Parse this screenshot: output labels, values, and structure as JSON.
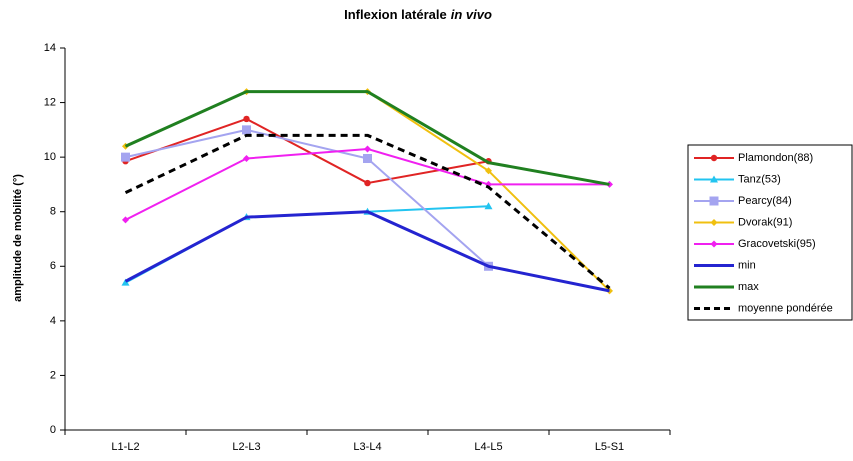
{
  "chart_data": {
    "type": "line",
    "title": [
      "Inflexion latérale",
      "in vivo"
    ],
    "y_label": "amplitude de mobilité (°)",
    "categories": [
      "L1-L2",
      "L2-L3",
      "L3-L4",
      "L4-L5",
      "L5-S1"
    ],
    "ylim": [
      0,
      14
    ],
    "yticks": [
      0,
      2,
      4,
      6,
      8,
      10,
      12,
      14
    ],
    "legend": "right",
    "series": [
      {
        "name": "Plamondon(88)",
        "color": "#e02424",
        "marker": "circle",
        "values": [
          9.85,
          11.4,
          9.05,
          9.85,
          null
        ]
      },
      {
        "name": "Tanz(53)",
        "color": "#22c4f0",
        "marker": "triangle",
        "values": [
          5.4,
          7.8,
          8.0,
          8.2,
          null
        ]
      },
      {
        "name": "Pearcy(84)",
        "color": "#a4a4f0",
        "marker": "square",
        "values": [
          10.0,
          11.0,
          9.95,
          6.0,
          null
        ]
      },
      {
        "name": "Dvorak(91)",
        "color": "#f0c010",
        "marker": "diamond",
        "values": [
          10.4,
          12.4,
          12.4,
          9.5,
          5.1
        ]
      },
      {
        "name": "Gracovetski(95)",
        "color": "#f020f0",
        "marker": "diamond",
        "values": [
          7.7,
          9.95,
          10.3,
          9.0,
          9.0
        ]
      },
      {
        "name": "min",
        "color": "#2424d0",
        "marker": "none",
        "width": 3,
        "values": [
          5.45,
          7.8,
          8.0,
          6.0,
          5.1
        ]
      },
      {
        "name": "max",
        "color": "#208020",
        "marker": "none",
        "width": 3,
        "values": [
          10.4,
          12.4,
          12.4,
          9.8,
          9.0
        ]
      },
      {
        "name": "moyenne pondérée",
        "color": "#000000",
        "marker": "none",
        "width": 3,
        "dash": true,
        "values": [
          8.7,
          10.8,
          10.8,
          8.9,
          5.2
        ]
      }
    ]
  }
}
